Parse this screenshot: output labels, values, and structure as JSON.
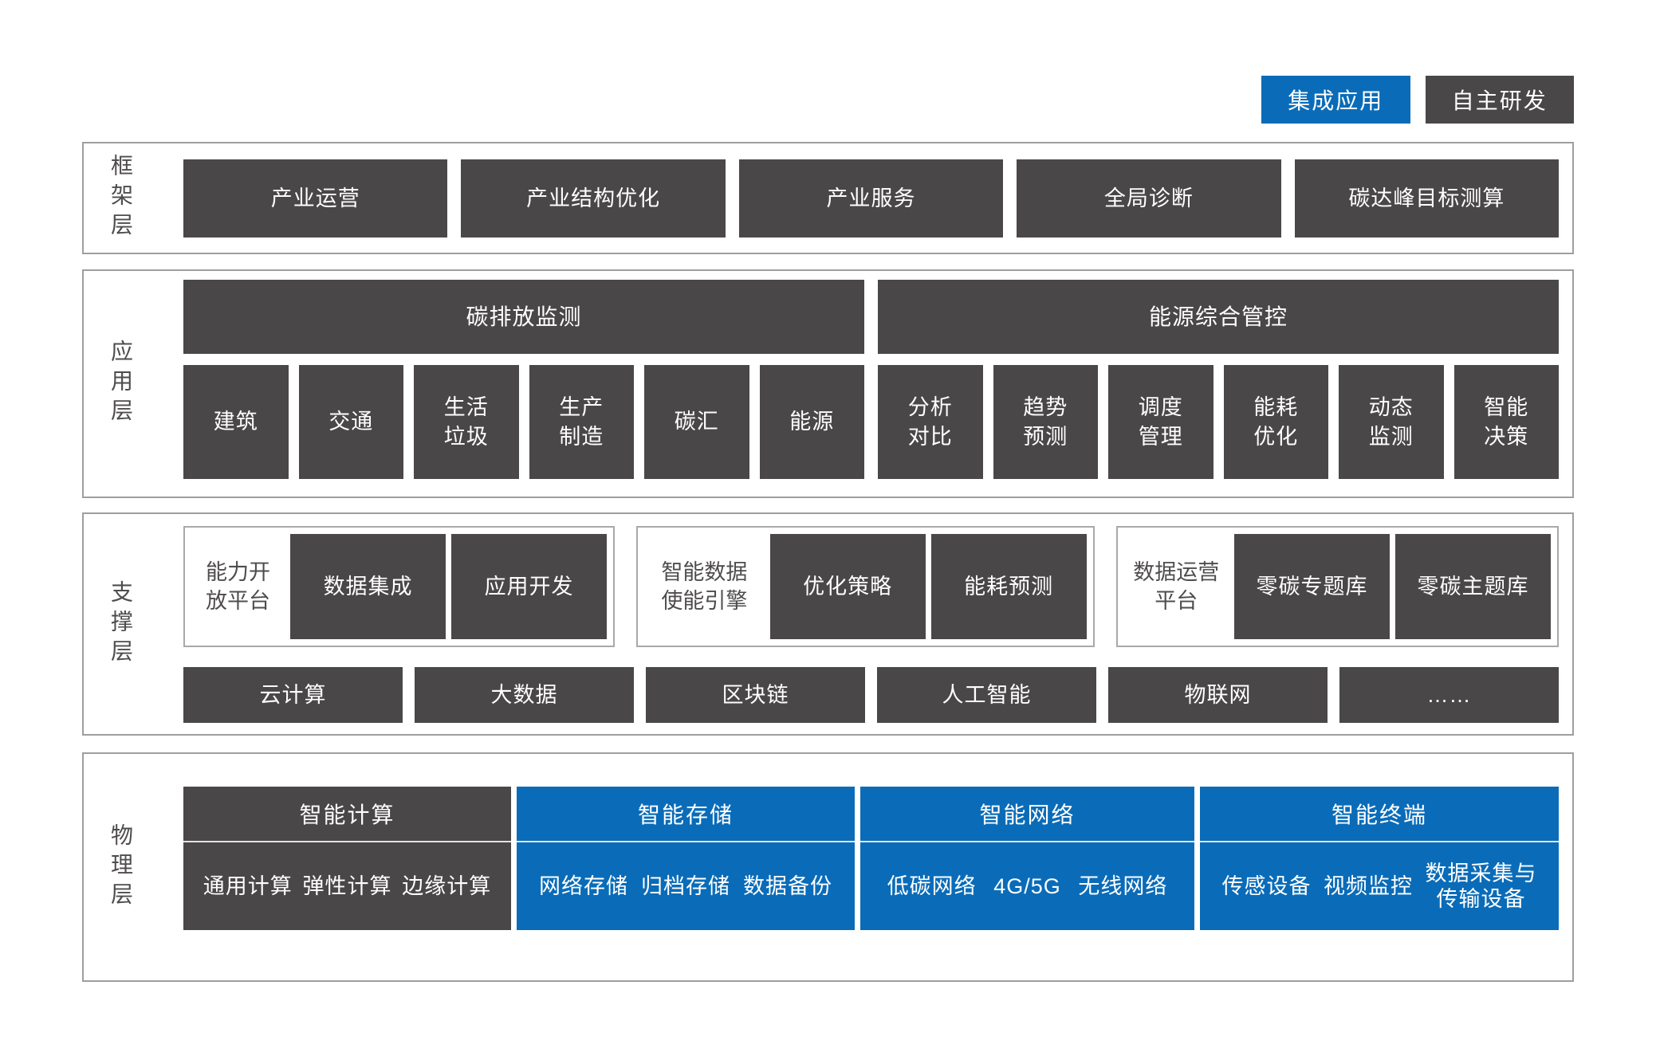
{
  "colors": {
    "blue": "#0a6cb8",
    "dark": "#4a4749",
    "frame_border": "#9e9e9e",
    "group_border": "#a9a9a9",
    "label_text": "#4f4c4d"
  },
  "legend": {
    "items": [
      {
        "label": "集成应用",
        "style": "blue"
      },
      {
        "label": "自主研发",
        "style": "dark"
      }
    ]
  },
  "layers": {
    "framework": {
      "label": "框架层",
      "items": [
        "产业运营",
        "产业结构优化",
        "产业服务",
        "全局诊断",
        "碳达峰目标测算"
      ]
    },
    "application": {
      "label": "应用层",
      "groups": [
        {
          "header": "碳排放监测",
          "items": [
            "建筑",
            "交通",
            "生活\n垃圾",
            "生产\n制造",
            "碳汇",
            "能源"
          ]
        },
        {
          "header": "能源综合管控",
          "items": [
            "分析\n对比",
            "趋势\n预测",
            "调度\n管理",
            "能耗\n优化",
            "动态\n监测",
            "智能\n决策"
          ]
        }
      ]
    },
    "support": {
      "label": "支撑层",
      "platforms": [
        {
          "name": "能力开\n放平台",
          "items": [
            "数据集成",
            "应用开发"
          ]
        },
        {
          "name": "智能数据\n使能引擎",
          "items": [
            "优化策略",
            "能耗预测"
          ]
        },
        {
          "name": "数据运营\n平台",
          "items": [
            "零碳专题库",
            "零碳主题库"
          ]
        }
      ],
      "technologies": [
        "云计算",
        "大数据",
        "区块链",
        "人工智能",
        "物联网",
        "……"
      ]
    },
    "physical": {
      "label": "物理层",
      "blocks": [
        {
          "title": "智能计算",
          "style": "dark",
          "items": [
            "通用计算",
            "弹性计算",
            "边缘计算"
          ]
        },
        {
          "title": "智能存储",
          "style": "blue",
          "items": [
            "网络存储",
            "归档存储",
            "数据备份"
          ]
        },
        {
          "title": "智能网络",
          "style": "blue",
          "items": [
            "低碳网络",
            "4G/5G",
            "无线网络"
          ]
        },
        {
          "title": "智能终端",
          "style": "blue",
          "items": [
            "传感设备",
            "视频监控",
            "数据采集与\n传输设备"
          ]
        }
      ]
    }
  }
}
